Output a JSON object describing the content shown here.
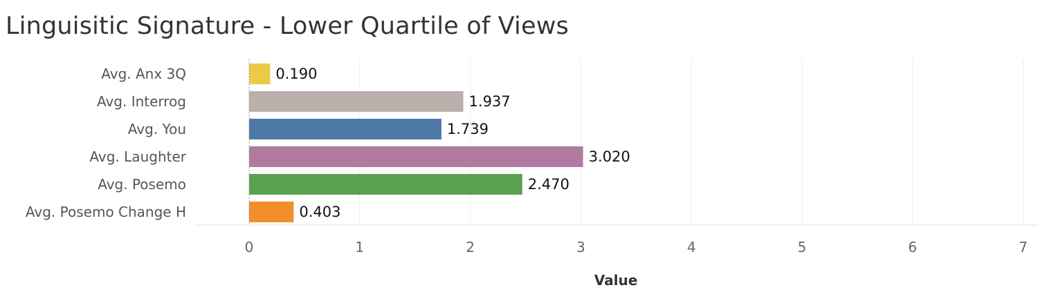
{
  "chart_data": {
    "type": "bar",
    "orientation": "horizontal",
    "title": "Linguisitic Signature  - Lower Quartile of Views",
    "xlabel": "Value",
    "ylabel": "",
    "categories": [
      "Avg. Anx 3Q",
      "Avg. Interrog",
      "Avg. You",
      "Avg. Laughter",
      "Avg. Posemo",
      "Avg. Posemo Change H"
    ],
    "values": [
      0.19,
      1.937,
      1.739,
      3.02,
      2.47,
      0.403
    ],
    "value_labels": [
      "0.190",
      "1.937",
      "1.739",
      "3.020",
      "2.470",
      "0.403"
    ],
    "colors": [
      "#EDC948",
      "#BAB0AC",
      "#4E79A7",
      "#B07AA1",
      "#59A14F",
      "#F28E2B"
    ],
    "xlim": [
      0,
      7
    ],
    "xticks": [
      "0",
      "1",
      "2",
      "3",
      "4",
      "5",
      "6",
      "7"
    ],
    "grid": true
  }
}
